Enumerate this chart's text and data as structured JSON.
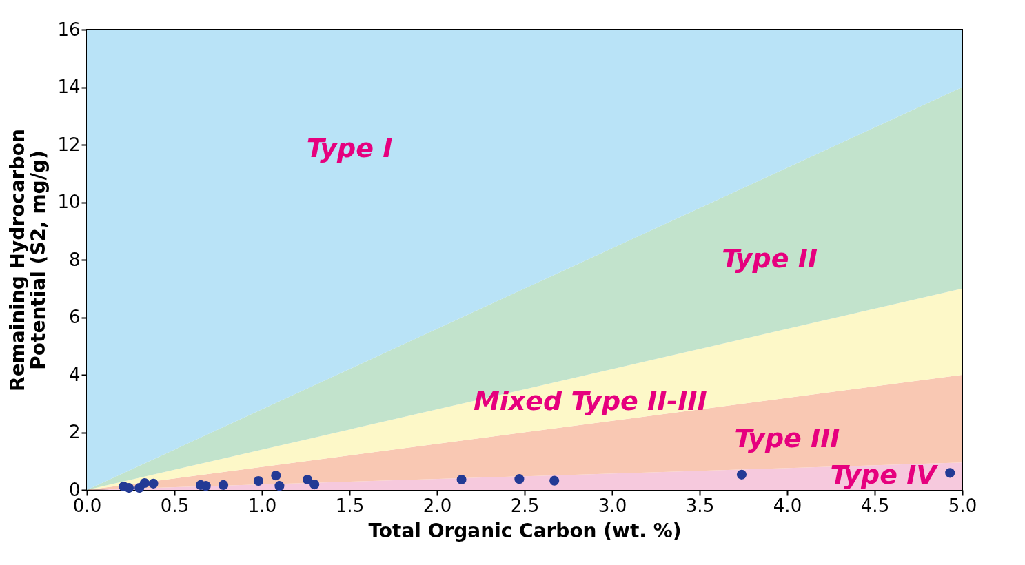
{
  "chart_data": {
    "type": "scatter",
    "xlabel": "Total Organic Carbon (wt. %)",
    "ylabel": "Remaining Hydrocarbon\nPotential (S2, mg/g)",
    "xlim": [
      0,
      5
    ],
    "ylim": [
      0,
      16
    ],
    "xticks": [
      {
        "value": 0,
        "label": "0.0"
      },
      0.5,
      {
        "value": 1,
        "label": "1.0"
      },
      1.5,
      {
        "value": 2,
        "label": "2.0"
      },
      2.5,
      {
        "value": 3,
        "label": "3.0"
      },
      3.5,
      {
        "value": 4,
        "label": "4.0"
      },
      4.5,
      {
        "value": 5,
        "label": "5.0"
      }
    ],
    "yticks": [
      0,
      2,
      4,
      6,
      8,
      10,
      12,
      14,
      16
    ],
    "grid": false,
    "stacked": true,
    "series": [
      {
        "type": "area",
        "color": "#f6c9dd",
        "x": [
          0,
          5
        ],
        "values": [
          0,
          0.95
        ]
      },
      {
        "type": "area",
        "color": "#f9c8b3",
        "x": [
          0,
          5
        ],
        "values": [
          0,
          3.05
        ]
      },
      {
        "type": "area",
        "color": "#fdf8c8",
        "x": [
          0,
          5
        ],
        "values": [
          0,
          3
        ]
      },
      {
        "type": "area",
        "color": "#c2e3cc",
        "x": [
          0,
          5
        ],
        "values": [
          0,
          7
        ]
      },
      {
        "type": "area",
        "color": "#b9e3f7",
        "x": [
          0,
          5
        ],
        "values": [
          16,
          2
        ]
      },
      {
        "color": "#233a95",
        "marker": "circle",
        "x": [
          0.21,
          0.24,
          0.3,
          0.33,
          0.38,
          0.65,
          0.68,
          0.78,
          0.98,
          1.08,
          1.1,
          1.26,
          1.3,
          2.14,
          2.47,
          2.67,
          3.74,
          4.93
        ],
        "values": [
          0.12,
          0.07,
          0.07,
          0.24,
          0.22,
          0.17,
          0.14,
          0.17,
          0.31,
          0.5,
          0.14,
          0.36,
          0.19,
          0.36,
          0.38,
          0.32,
          0.53,
          0.59
        ]
      }
    ],
    "annotations": [
      "Type I",
      "Type II",
      "Mixed Type II-III",
      "Type III",
      "Type IV"
    ]
  }
}
